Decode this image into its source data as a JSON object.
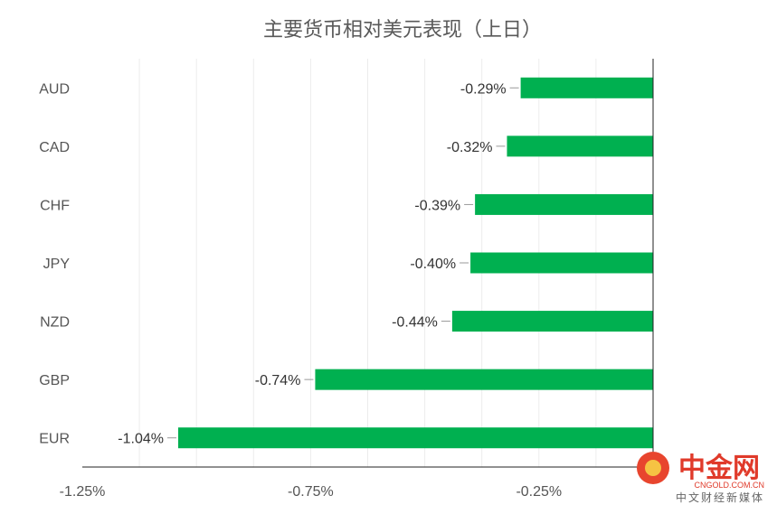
{
  "chart_data": {
    "type": "bar",
    "orientation": "horizontal",
    "title": "主要货币相对美元表现（上日）",
    "categories": [
      "AUD",
      "CAD",
      "CHF",
      "JPY",
      "NZD",
      "GBP",
      "EUR"
    ],
    "values": [
      -0.29,
      -0.32,
      -0.39,
      -0.4,
      -0.44,
      -0.74,
      -1.04
    ],
    "data_labels": [
      "-0.29%",
      "-0.32%",
      "-0.39%",
      "-0.40%",
      "-0.44%",
      "-0.74%",
      "-1.04%"
    ],
    "xlim": [
      -1.25,
      0
    ],
    "x_ticks": [
      -1.25,
      -0.75,
      -0.25
    ],
    "x_tick_labels": [
      "-1.25%",
      "-0.75%",
      "-0.25%"
    ],
    "xlabel": "",
    "ylabel": "",
    "grid": true,
    "legend": "none",
    "bar_color": "#00b050"
  },
  "watermark": {
    "logo_icon": "cngold-logo-icon",
    "name": "中金网",
    "domain": "CNGOLD.COM.CN",
    "tagline": "中文财经新媒体"
  }
}
